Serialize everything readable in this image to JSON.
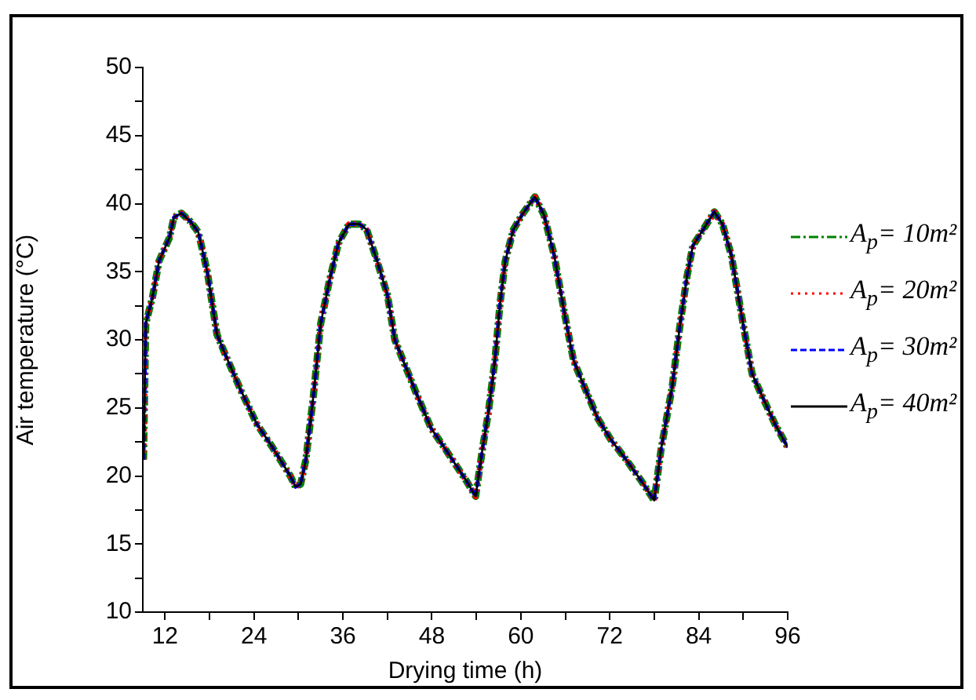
{
  "chart_data": {
    "type": "line",
    "xlabel": "Drying time (h)",
    "ylabel": "Air temperature (°C)",
    "x": [
      9.1,
      9.4,
      10.3,
      11.2,
      12.6,
      13.2,
      14.2,
      15.4,
      16.5,
      17.7,
      19.0,
      20.3,
      22.3,
      24.4,
      26.5,
      28.9,
      29.6,
      30.3,
      31.0,
      32.0,
      33.0,
      34.2,
      35.4,
      36.8,
      38.2,
      39.2,
      40.6,
      42.0,
      43.0,
      44.4,
      45.8,
      47.9,
      49.9,
      52.7,
      53.9,
      54.8,
      55.6,
      56.5,
      57.2,
      57.9,
      59.0,
      60.3,
      61.9,
      63.1,
      64.5,
      65.9,
      67.1,
      68.3,
      70.4,
      72.1,
      74.2,
      76.3,
      78.0,
      78.9,
      80.4,
      81.5,
      82.4,
      83.2,
      84.6,
      86.1,
      87.2,
      88.4,
      90.1,
      91.2,
      92.6,
      94.3,
      96.0
    ],
    "series": [
      {
        "name": "A$_{p}$= 10m²",
        "color": "#008000",
        "line_style": "dashdot",
        "values": [
          21.2,
          31.2,
          33.1,
          35.8,
          37.5,
          39.0,
          39.3,
          38.7,
          37.9,
          35.0,
          30.4,
          28.7,
          26.2,
          23.8,
          22.1,
          20.0,
          19.2,
          19.4,
          21.2,
          25.8,
          31.2,
          34.4,
          37.1,
          38.5,
          38.5,
          38.1,
          35.8,
          33.3,
          30.0,
          28.1,
          26.2,
          23.5,
          21.9,
          19.6,
          18.5,
          21.9,
          24.6,
          28.5,
          32.7,
          35.8,
          38.1,
          39.3,
          40.5,
          39.2,
          36.2,
          31.9,
          28.5,
          26.9,
          24.2,
          22.7,
          21.2,
          19.6,
          18.2,
          21.9,
          26.5,
          31.2,
          34.6,
          36.9,
          38.1,
          39.4,
          38.5,
          36.2,
          30.8,
          27.5,
          25.8,
          23.8,
          22.1
        ]
      },
      {
        "name": "A$_{p}$= 20m²",
        "color": "#ff0000",
        "line_style": "dotted",
        "values": [
          21.2,
          31.2,
          33.1,
          35.8,
          37.5,
          39.0,
          39.3,
          38.7,
          37.9,
          35.0,
          30.4,
          28.7,
          26.2,
          23.8,
          22.1,
          20.0,
          19.2,
          19.4,
          21.2,
          25.8,
          31.2,
          34.4,
          37.1,
          38.5,
          38.5,
          38.1,
          35.8,
          33.3,
          30.0,
          28.1,
          26.2,
          23.5,
          21.9,
          19.6,
          18.5,
          21.9,
          24.6,
          28.5,
          32.7,
          35.8,
          38.1,
          39.3,
          40.5,
          39.2,
          36.2,
          31.9,
          28.5,
          26.9,
          24.2,
          22.7,
          21.2,
          19.6,
          18.2,
          21.9,
          26.5,
          31.2,
          34.6,
          36.9,
          38.1,
          39.4,
          38.5,
          36.2,
          30.8,
          27.5,
          25.8,
          23.8,
          22.1
        ]
      },
      {
        "name": "A$_{p}$= 30m²",
        "color": "#0000ff",
        "line_style": "dashed",
        "values": [
          21.2,
          31.2,
          33.1,
          35.8,
          37.5,
          39.0,
          39.3,
          38.7,
          37.9,
          35.0,
          30.4,
          28.7,
          26.2,
          23.8,
          22.1,
          20.0,
          19.2,
          19.4,
          21.2,
          25.8,
          31.2,
          34.4,
          37.1,
          38.5,
          38.5,
          38.1,
          35.8,
          33.3,
          30.0,
          28.1,
          26.2,
          23.5,
          21.9,
          19.6,
          18.5,
          21.9,
          24.6,
          28.5,
          32.7,
          35.8,
          38.1,
          39.3,
          40.5,
          39.2,
          36.2,
          31.9,
          28.5,
          26.9,
          24.2,
          22.7,
          21.2,
          19.6,
          18.2,
          21.9,
          26.5,
          31.2,
          34.6,
          36.9,
          38.1,
          39.4,
          38.5,
          36.2,
          30.8,
          27.5,
          25.8,
          23.8,
          22.1
        ]
      },
      {
        "name": "A$_{p}$= 40m²",
        "color": "#000000",
        "line_style": "solid",
        "values": [
          21.2,
          31.2,
          33.1,
          35.8,
          37.5,
          39.0,
          39.3,
          38.7,
          37.9,
          35.0,
          30.4,
          28.7,
          26.2,
          23.8,
          22.1,
          20.0,
          19.2,
          19.4,
          21.2,
          25.8,
          31.2,
          34.4,
          37.1,
          38.5,
          38.5,
          38.1,
          35.8,
          33.3,
          30.0,
          28.1,
          26.2,
          23.5,
          21.9,
          19.6,
          18.5,
          21.9,
          24.6,
          28.5,
          32.7,
          35.8,
          38.1,
          39.3,
          40.5,
          39.2,
          36.2,
          31.9,
          28.5,
          26.9,
          24.2,
          22.7,
          21.2,
          19.6,
          18.2,
          21.9,
          26.5,
          31.2,
          34.6,
          36.9,
          38.1,
          39.4,
          38.5,
          36.2,
          30.8,
          27.5,
          25.8,
          23.8,
          22.1
        ]
      }
    ],
    "xlim": [
      9,
      96
    ],
    "xticks": [
      12,
      {
        "value": 18,
        "label": null
      },
      24,
      {
        "value": 30,
        "label": null
      },
      36,
      {
        "value": 42,
        "label": null
      },
      48,
      {
        "value": 54,
        "label": null
      },
      60,
      {
        "value": 66,
        "label": null
      },
      72,
      {
        "value": 78,
        "label": null
      },
      84,
      {
        "value": 90,
        "label": null
      },
      96
    ],
    "ylim": [
      10,
      50
    ],
    "yticks": [
      10,
      {
        "value": 12.5,
        "label": null
      },
      15,
      {
        "value": 17.5,
        "label": null
      },
      20,
      {
        "value": 22.5,
        "label": null
      },
      25,
      {
        "value": 27.5,
        "label": null
      },
      30,
      {
        "value": 32.5,
        "label": null
      },
      35,
      {
        "value": 37.5,
        "label": null
      },
      40,
      {
        "value": 42.5,
        "label": null
      },
      45,
      {
        "value": 47.5,
        "label": null
      },
      50
    ],
    "grid": false,
    "legend": "right"
  }
}
